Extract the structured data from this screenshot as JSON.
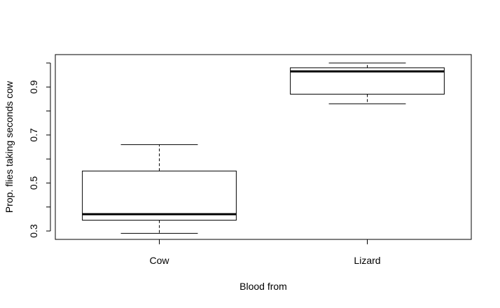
{
  "chart_data": {
    "type": "boxplot",
    "title": "",
    "xlabel": "Blood from",
    "ylabel": "Prop. flies taking seconds cow",
    "ylim": [
      0.265,
      1.035
    ],
    "yticks": [
      0.3,
      0.4,
      0.5,
      0.6,
      0.7,
      0.8,
      0.9,
      1.0
    ],
    "ytick_labels": [
      "0.3",
      "",
      "0.5",
      "",
      "0.7",
      "",
      "0.9",
      ""
    ],
    "categories": [
      "Cow",
      "Lizard"
    ],
    "boxes": [
      {
        "category": "Cow",
        "whisker_low": 0.29,
        "q1": 0.345,
        "median": 0.37,
        "q3": 0.55,
        "whisker_high": 0.66
      },
      {
        "category": "Lizard",
        "whisker_low": 0.83,
        "q1": 0.87,
        "median": 0.965,
        "q3": 0.98,
        "whisker_high": 1.0
      }
    ],
    "grid": false
  }
}
